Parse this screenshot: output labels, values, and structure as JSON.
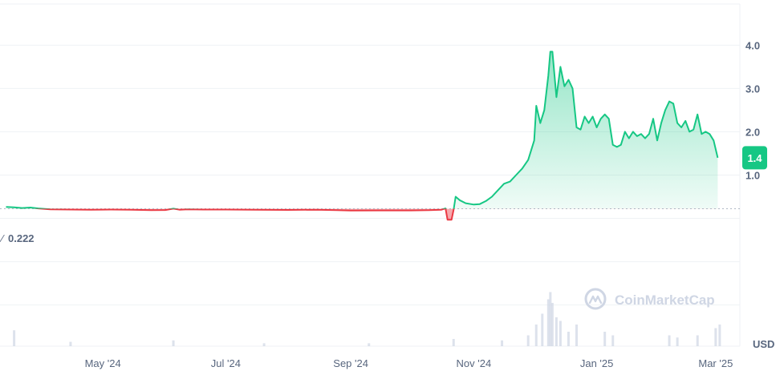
{
  "chart_data": {
    "type": "area",
    "baseline": {
      "value": 0.222,
      "label": "0.222"
    },
    "current_price": {
      "value": 1.4,
      "label": "1.4"
    },
    "ylim": [
      -2.95,
      4.95
    ],
    "y_ticks": [
      {
        "value": 1.0,
        "label": "1.0"
      },
      {
        "value": 2.0,
        "label": "2.0"
      },
      {
        "value": 3.0,
        "label": "3.0"
      },
      {
        "value": 4.0,
        "label": "4.0"
      }
    ],
    "x_ticks": [
      {
        "date": "2024-05-01",
        "label": "May '24"
      },
      {
        "date": "2024-07-01",
        "label": "Jul '24"
      },
      {
        "date": "2024-09-01",
        "label": "Sep '24"
      },
      {
        "date": "2024-11-01",
        "label": "Nov '24"
      },
      {
        "date": "2025-01-01",
        "label": "Jan '25"
      },
      {
        "date": "2025-03-01",
        "label": "Mar '25"
      }
    ],
    "xlim": [
      "2024-03-11",
      "2025-03-13"
    ],
    "currency": "USD",
    "colors": {
      "up": "#16c784",
      "down": "#ea3943",
      "grid": "#eff2f5",
      "axis_text": "#58667e",
      "watermark": "#cfd6e4",
      "volume": "#cfd6e4"
    },
    "series": [
      {
        "points": [
          [
            "2024-03-14",
            0.265
          ],
          [
            "2024-03-18",
            0.255
          ],
          [
            "2024-03-22",
            0.24
          ],
          [
            "2024-03-26",
            0.25
          ],
          [
            "2024-03-30",
            0.23
          ],
          [
            "2024-04-05",
            0.21
          ],
          [
            "2024-04-15",
            0.205
          ],
          [
            "2024-04-25",
            0.2
          ],
          [
            "2024-05-05",
            0.205
          ],
          [
            "2024-05-15",
            0.198
          ],
          [
            "2024-05-25",
            0.192
          ],
          [
            "2024-06-01",
            0.193
          ],
          [
            "2024-06-05",
            0.225
          ],
          [
            "2024-06-08",
            0.2
          ],
          [
            "2024-06-12",
            0.21
          ],
          [
            "2024-06-20",
            0.205
          ],
          [
            "2024-07-01",
            0.205
          ],
          [
            "2024-07-15",
            0.2
          ],
          [
            "2024-08-01",
            0.195
          ],
          [
            "2024-08-15",
            0.2
          ],
          [
            "2024-08-25",
            0.19
          ],
          [
            "2024-09-01",
            0.18
          ],
          [
            "2024-09-15",
            0.185
          ],
          [
            "2024-10-01",
            0.185
          ],
          [
            "2024-10-10",
            0.19
          ],
          [
            "2024-10-16",
            0.2
          ],
          [
            "2024-10-18",
            0.23
          ],
          [
            "2024-10-19",
            -0.03
          ],
          [
            "2024-10-21",
            -0.03
          ],
          [
            "2024-10-22",
            0.2
          ],
          [
            "2024-10-23",
            0.5
          ],
          [
            "2024-10-25",
            0.42
          ],
          [
            "2024-10-28",
            0.35
          ],
          [
            "2024-11-01",
            0.32
          ],
          [
            "2024-11-04",
            0.33
          ],
          [
            "2024-11-07",
            0.4
          ],
          [
            "2024-11-10",
            0.5
          ],
          [
            "2024-11-13",
            0.65
          ],
          [
            "2024-11-16",
            0.8
          ],
          [
            "2024-11-19",
            0.85
          ],
          [
            "2024-11-22",
            1.0
          ],
          [
            "2024-11-25",
            1.15
          ],
          [
            "2024-11-28",
            1.35
          ],
          [
            "2024-12-01",
            1.8
          ],
          [
            "2024-12-02",
            2.6
          ],
          [
            "2024-12-04",
            2.2
          ],
          [
            "2024-12-06",
            2.5
          ],
          [
            "2024-12-08",
            3.3
          ],
          [
            "2024-12-09",
            3.85
          ],
          [
            "2024-12-10",
            3.85
          ],
          [
            "2024-12-12",
            2.8
          ],
          [
            "2024-12-14",
            3.5
          ],
          [
            "2024-12-16",
            3.05
          ],
          [
            "2024-12-18",
            3.2
          ],
          [
            "2024-12-20",
            3.0
          ],
          [
            "2024-12-22",
            2.1
          ],
          [
            "2024-12-24",
            2.05
          ],
          [
            "2024-12-26",
            2.35
          ],
          [
            "2024-12-28",
            2.2
          ],
          [
            "2024-12-30",
            2.35
          ],
          [
            "2025-01-01",
            2.1
          ],
          [
            "2025-01-03",
            2.3
          ],
          [
            "2025-01-05",
            2.4
          ],
          [
            "2025-01-07",
            2.3
          ],
          [
            "2025-01-09",
            1.7
          ],
          [
            "2025-01-11",
            1.65
          ],
          [
            "2025-01-13",
            1.7
          ],
          [
            "2025-01-15",
            2.0
          ],
          [
            "2025-01-17",
            1.85
          ],
          [
            "2025-01-19",
            2.0
          ],
          [
            "2025-01-21",
            1.9
          ],
          [
            "2025-01-23",
            1.95
          ],
          [
            "2025-01-25",
            1.85
          ],
          [
            "2025-01-27",
            1.95
          ],
          [
            "2025-01-29",
            2.3
          ],
          [
            "2025-01-31",
            1.8
          ],
          [
            "2025-02-02",
            2.2
          ],
          [
            "2025-02-04",
            2.5
          ],
          [
            "2025-02-06",
            2.7
          ],
          [
            "2025-02-08",
            2.65
          ],
          [
            "2025-02-10",
            2.2
          ],
          [
            "2025-02-12",
            2.1
          ],
          [
            "2025-02-14",
            2.25
          ],
          [
            "2025-02-16",
            2.0
          ],
          [
            "2025-02-18",
            2.05
          ],
          [
            "2025-02-20",
            2.4
          ],
          [
            "2025-02-22",
            1.95
          ],
          [
            "2025-02-24",
            2.0
          ],
          [
            "2025-02-26",
            1.95
          ],
          [
            "2025-02-28",
            1.8
          ],
          [
            "2025-03-02",
            1.4
          ]
        ]
      }
    ],
    "volume": [
      [
        "2024-03-18",
        0.22
      ],
      [
        "2024-04-15",
        0.06
      ],
      [
        "2024-06-05",
        0.08
      ],
      [
        "2024-07-20",
        0.04
      ],
      [
        "2024-09-10",
        0.04
      ],
      [
        "2024-10-22",
        0.1
      ],
      [
        "2024-11-15",
        0.08
      ],
      [
        "2024-11-28",
        0.15
      ],
      [
        "2024-12-02",
        0.3
      ],
      [
        "2024-12-05",
        0.45
      ],
      [
        "2024-12-08",
        0.65
      ],
      [
        "2024-12-09",
        0.75
      ],
      [
        "2024-12-10",
        0.6
      ],
      [
        "2024-12-12",
        0.4
      ],
      [
        "2024-12-14",
        0.35
      ],
      [
        "2024-12-18",
        0.2
      ],
      [
        "2024-12-22",
        0.3
      ],
      [
        "2025-01-05",
        0.2
      ],
      [
        "2025-01-09",
        0.15
      ],
      [
        "2025-02-06",
        0.15
      ],
      [
        "2025-02-10",
        0.12
      ],
      [
        "2025-02-20",
        0.15
      ],
      [
        "2025-03-01",
        0.25
      ],
      [
        "2025-03-03",
        0.3
      ]
    ]
  },
  "watermark": {
    "text": "CoinMarketCap"
  }
}
